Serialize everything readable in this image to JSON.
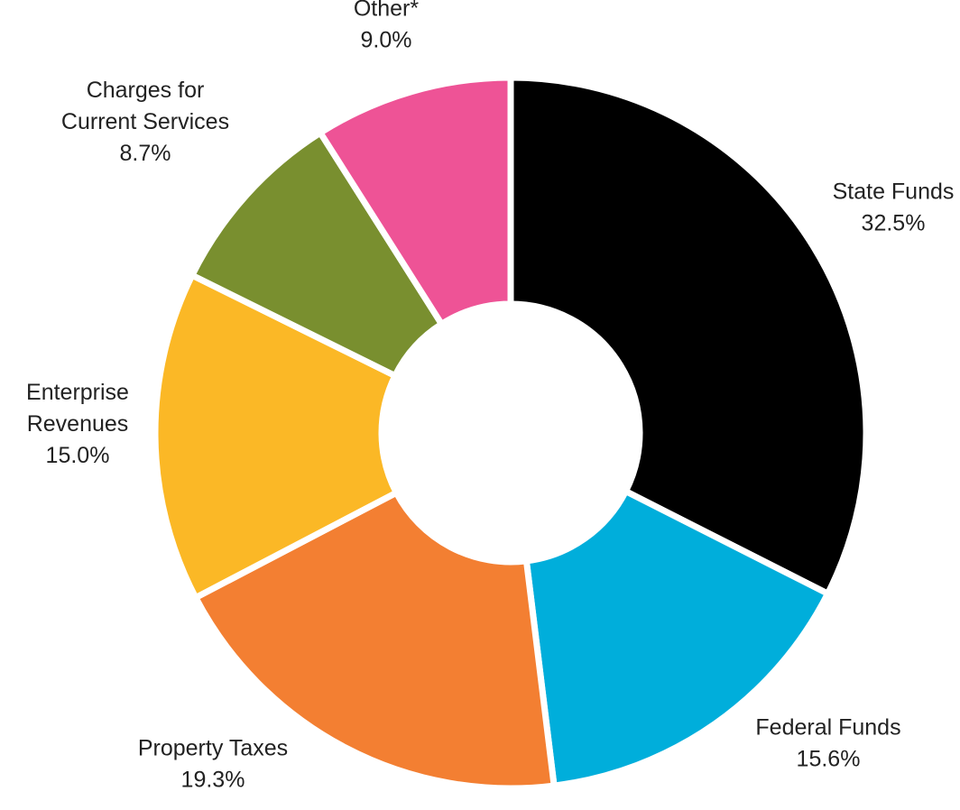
{
  "chart_data": {
    "type": "pie",
    "style": "donut",
    "slices": [
      {
        "label_lines": [
          "State Funds"
        ],
        "value": 32.5,
        "value_label": "32.5%",
        "color": "#000000"
      },
      {
        "label_lines": [
          "Federal Funds"
        ],
        "value": 15.6,
        "value_label": "15.6%",
        "color": "#00AEDB"
      },
      {
        "label_lines": [
          "Property Taxes"
        ],
        "value": 19.3,
        "value_label": "19.3%",
        "color": "#F37F32"
      },
      {
        "label_lines": [
          "Enterprise",
          "Revenues"
        ],
        "value": 15.0,
        "value_label": "15.0%",
        "color": "#FBB826"
      },
      {
        "label_lines": [
          "Charges for",
          "Current Services"
        ],
        "value": 8.7,
        "value_label": "8.7%",
        "color": "#798F2F"
      },
      {
        "label_lines": [
          "Other*"
        ],
        "value": 9.0,
        "value_label": "9.0%",
        "color": "#EE5396"
      }
    ],
    "start_angle": "top",
    "direction": "clockwise"
  }
}
